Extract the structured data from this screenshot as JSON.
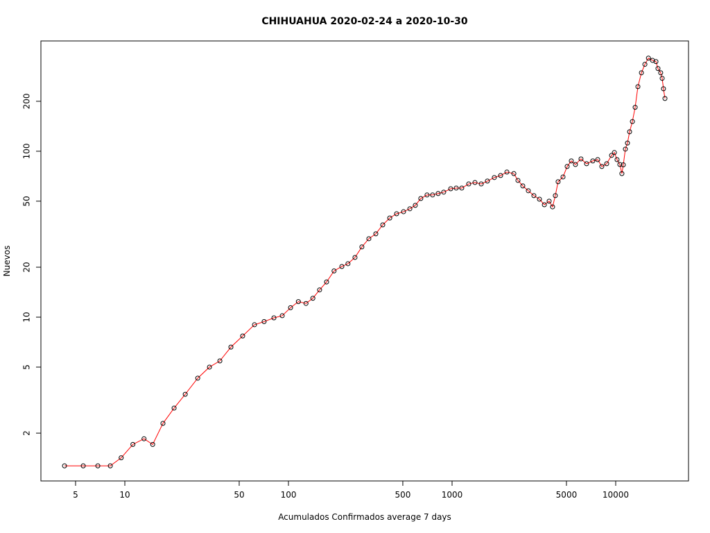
{
  "chart_data": {
    "type": "line",
    "title": "CHIHUAHUA 2020-02-24 a 2020-10-30",
    "x_label": "Acumulados Confirmados average  7  days",
    "y_label": "Nuevos",
    "x_log": true,
    "y_log": true,
    "line_color": "#ff0000",
    "marker_color": "#000000",
    "xlim": [
      3.07,
      27860
    ],
    "ylim": [
      1.03,
      462
    ],
    "xticks": [
      5,
      10,
      50,
      100,
      500,
      1000,
      5000,
      10000
    ],
    "yticks": [
      2,
      5,
      10,
      20,
      50,
      100,
      200
    ],
    "x": [
      4.28,
      5.57,
      6.84,
      8.15,
      9.5,
      11.2,
      13.1,
      14.8,
      17.1,
      20,
      23.4,
      27.9,
      32.9,
      38.1,
      44.5,
      52.5,
      62,
      71,
      81.5,
      91.6,
      103,
      115,
      128,
      141,
      155,
      171,
      190,
      212,
      231,
      255,
      281,
      310,
      342,
      377,
      416,
      458,
      505,
      552,
      596,
      644,
      703,
      760,
      822,
      889,
      981,
      1060,
      1146,
      1264,
      1380,
      1507,
      1644,
      1812,
      1980,
      2163,
      2385,
      2527,
      2705,
      2924,
      3162,
      3420,
      3664,
      3919,
      4113,
      4276,
      4446,
      4764,
      5050,
      5355,
      5676,
      6136,
      6637,
      7244,
      7762,
      8226,
      8810,
      9434,
      9817,
      10190,
      10600,
      10910,
      11130,
      11460,
      11800,
      12160,
      12650,
      13150,
      13670,
      14360,
      15080,
      15850,
      16790,
      17620,
      18130,
      18840,
      19230,
      19590,
      20000
    ],
    "y": [
      1.27,
      1.27,
      1.27,
      1.27,
      1.42,
      1.71,
      1.85,
      1.71,
      2.29,
      2.83,
      3.43,
      4.29,
      5,
      5.45,
      6.6,
      7.7,
      9.0,
      9.4,
      9.9,
      10.2,
      11.4,
      12.4,
      12.1,
      13.0,
      14.6,
      16.3,
      19.0,
      20.2,
      21,
      22.9,
      26.5,
      29.7,
      31.8,
      36,
      39.6,
      42,
      43.2,
      45,
      47.2,
      51.9,
      54.5,
      54.5,
      55.6,
      56.7,
      59.4,
      60,
      60,
      63.5,
      64.8,
      63.5,
      66.1,
      69.4,
      71.4,
      74.9,
      73.3,
      66.7,
      61.8,
      57.8,
      54,
      51.4,
      47.6,
      50,
      46.2,
      54,
      65.5,
      70,
      80.9,
      87.4,
      83.2,
      89.9,
      84.1,
      87.4,
      89,
      80.9,
      84.1,
      94.4,
      98.2,
      89,
      83.2,
      73.3,
      82.8,
      103,
      112,
      131,
      151,
      184,
      245,
      297,
      334,
      364,
      353,
      347,
      315,
      297,
      275,
      238,
      208
    ]
  }
}
